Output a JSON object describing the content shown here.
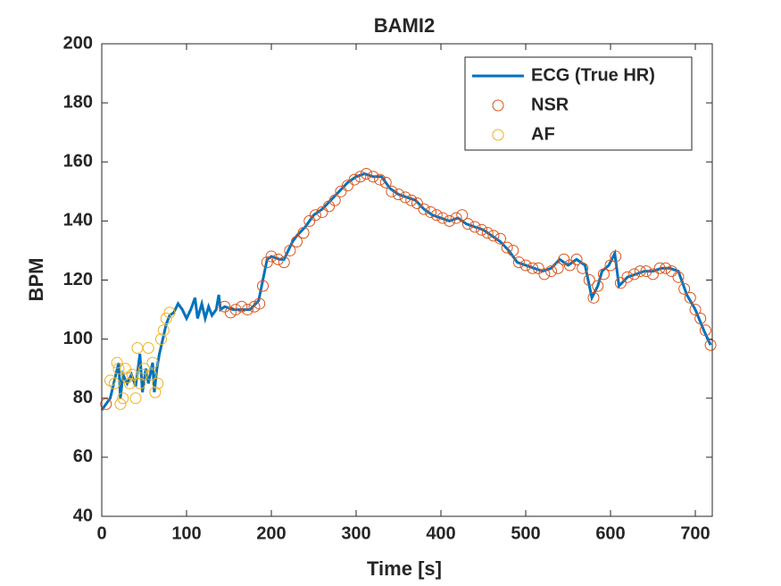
{
  "chart_data": {
    "type": "line",
    "title": "BAMI2",
    "xlabel": "Time [s]",
    "ylabel": "BPM",
    "xlim": [
      0,
      720
    ],
    "ylim": [
      40,
      200
    ],
    "xticks": [
      0,
      100,
      200,
      300,
      400,
      500,
      600,
      700
    ],
    "yticks": [
      40,
      60,
      80,
      100,
      120,
      140,
      160,
      180,
      200
    ],
    "grid": false,
    "legend": "northeast",
    "series": [
      {
        "name": "ECG (True HR)",
        "type": "line",
        "color": "#0072bd",
        "x": [
          0,
          5,
          10,
          15,
          20,
          22,
          25,
          30,
          35,
          40,
          45,
          48,
          52,
          55,
          60,
          62,
          65,
          68,
          72,
          76,
          80,
          85,
          90,
          95,
          100,
          105,
          110,
          113,
          118,
          122,
          126,
          130,
          135,
          138,
          140,
          145,
          155,
          165,
          175,
          185,
          190,
          195,
          200,
          210,
          215,
          220,
          225,
          230,
          240,
          250,
          260,
          270,
          280,
          290,
          300,
          310,
          320,
          330,
          340,
          350,
          360,
          370,
          380,
          390,
          400,
          410,
          420,
          430,
          440,
          450,
          460,
          470,
          480,
          490,
          500,
          510,
          520,
          530,
          540,
          550,
          560,
          570,
          578,
          585,
          590,
          598,
          605,
          610,
          620,
          630,
          640,
          650,
          660,
          670,
          680,
          690,
          700,
          710,
          718
        ],
        "values": [
          76,
          78,
          80,
          86,
          92,
          80,
          88,
          85,
          88,
          84,
          95,
          82,
          90,
          85,
          92,
          82,
          90,
          95,
          100,
          105,
          108,
          109,
          112,
          110,
          107,
          110,
          114,
          107,
          112,
          107,
          111,
          108,
          110,
          115,
          110,
          111,
          110,
          110,
          110,
          113,
          120,
          127,
          128,
          127,
          127,
          130,
          133,
          135,
          138,
          142,
          144,
          147,
          150,
          153,
          155,
          156,
          155,
          155,
          151,
          149,
          148,
          147,
          144,
          142,
          141,
          140,
          141,
          139,
          138,
          137,
          135,
          133,
          130,
          126,
          125,
          124,
          123,
          124,
          127,
          125,
          127,
          125,
          114,
          118,
          123,
          125,
          129,
          118,
          121,
          122,
          123,
          123,
          124,
          124,
          123,
          115,
          110,
          103,
          98
        ]
      },
      {
        "name": "NSR",
        "type": "scatter",
        "color": "#d95319",
        "x": [
          5,
          145,
          152,
          158,
          165,
          172,
          180,
          186,
          190,
          195,
          200,
          208,
          215,
          222,
          230,
          238,
          245,
          252,
          260,
          268,
          275,
          282,
          290,
          298,
          305,
          312,
          320,
          328,
          335,
          342,
          350,
          358,
          365,
          372,
          380,
          388,
          395,
          402,
          410,
          418,
          425,
          432,
          440,
          448,
          455,
          462,
          470,
          478,
          485,
          492,
          500,
          508,
          515,
          522,
          530,
          538,
          545,
          552,
          560,
          567,
          575,
          580,
          585,
          592,
          600,
          606,
          612,
          620,
          628,
          635,
          642,
          650,
          658,
          665,
          672,
          680,
          687,
          694,
          700,
          706,
          712,
          718
        ],
        "values": [
          78,
          111,
          109,
          110,
          111,
          110,
          111,
          112,
          118,
          126,
          128,
          127,
          126,
          130,
          133,
          136,
          140,
          142,
          143,
          145,
          147,
          150,
          152,
          154,
          155,
          156,
          155,
          154,
          153,
          150,
          149,
          148,
          147,
          146,
          144,
          143,
          142,
          141,
          140,
          141,
          142,
          139,
          138,
          137,
          136,
          135,
          134,
          131,
          130,
          126,
          125,
          124,
          124,
          122,
          123,
          124,
          127,
          125,
          127,
          124,
          120,
          114,
          118,
          122,
          125,
          128,
          119,
          121,
          122,
          123,
          123,
          122,
          124,
          124,
          123,
          121,
          117,
          114,
          110,
          107,
          103,
          98
        ]
      },
      {
        "name": "AF",
        "type": "scatter",
        "color": "#edb120",
        "x": [
          10,
          15,
          18,
          20,
          22,
          25,
          28,
          30,
          33,
          36,
          40,
          42,
          45,
          48,
          50,
          55,
          58,
          60,
          63,
          66,
          70,
          73,
          76,
          80
        ],
        "values": [
          86,
          85,
          92,
          90,
          78,
          80,
          90,
          87,
          85,
          88,
          80,
          97,
          85,
          88,
          90,
          97,
          88,
          92,
          82,
          85,
          100,
          103,
          107,
          109
        ]
      }
    ]
  }
}
